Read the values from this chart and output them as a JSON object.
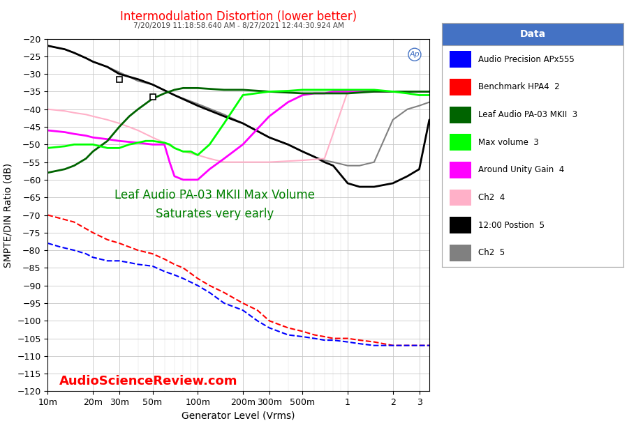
{
  "title_main": "Intermodulation Distortion (lower better)",
  "title_sub": "7/20/2019 11:18:58.640 AM - 8/27/2021 12:44:30.924 AM",
  "xlabel": "Generator Level (Vrms)",
  "ylabel": "SMPTE/DIN Ratio (dB)",
  "watermark": "AudioScienceReview.com",
  "annotation": "Leaf Audio PA-03 MKII Max Volume\nSaturates very early",
  "annotation_color": "#008000",
  "ylim": [
    -120,
    -20
  ],
  "yticks": [
    -120,
    -115,
    -110,
    -105,
    -100,
    -95,
    -90,
    -85,
    -80,
    -75,
    -70,
    -65,
    -60,
    -55,
    -50,
    -45,
    -40,
    -35,
    -30,
    -25,
    -20
  ],
  "xtick_vals": [
    0.01,
    0.02,
    0.03,
    0.05,
    0.1,
    0.2,
    0.3,
    0.5,
    1.0,
    2.0,
    3.0
  ],
  "xtick_labels": [
    "10m",
    "20m",
    "30m",
    "50m",
    "100m",
    "200m",
    "300m",
    "500m",
    "1",
    "2",
    "3"
  ],
  "legend_title": "Data",
  "legend_title_bg": "#4472c4",
  "legend_entries": [
    {
      "label": "Audio Precision APx555",
      "color": "#0000ff",
      "lw": 1.5,
      "ls": "--"
    },
    {
      "label": "Benchmark HPA4  2",
      "color": "#ff0000",
      "lw": 1.5,
      "ls": "--"
    },
    {
      "label": "Leaf Audio PA-03 MKII  3",
      "color": "#006400",
      "lw": 2.0,
      "ls": "-"
    },
    {
      "label": "Max volume  3",
      "color": "#00ff00",
      "lw": 2.0,
      "ls": "-"
    },
    {
      "label": "Around Unity Gain  4",
      "color": "#ff00ff",
      "lw": 2.0,
      "ls": "-"
    },
    {
      "label": "Ch2  4",
      "color": "#ffb0c8",
      "lw": 1.5,
      "ls": "-"
    },
    {
      "label": "12:00 Postion  5",
      "color": "#000000",
      "lw": 2.0,
      "ls": "-"
    },
    {
      "label": "Ch2  5",
      "color": "#808080",
      "lw": 1.5,
      "ls": "-"
    }
  ],
  "series": {
    "apx555": {
      "color": "#0000ff",
      "lw": 1.5,
      "ls": "--",
      "x": [
        0.01,
        0.012,
        0.015,
        0.018,
        0.02,
        0.025,
        0.03,
        0.035,
        0.04,
        0.05,
        0.06,
        0.07,
        0.08,
        0.1,
        0.12,
        0.15,
        0.2,
        0.25,
        0.3,
        0.4,
        0.5,
        0.6,
        0.7,
        0.8,
        1.0,
        1.2,
        1.5,
        2.0,
        2.5,
        3.0,
        3.5
      ],
      "y": [
        -78,
        -79,
        -80,
        -81,
        -82,
        -83,
        -83,
        -83.5,
        -84,
        -84.5,
        -86,
        -87,
        -88,
        -90,
        -92,
        -95,
        -97,
        -100,
        -102,
        -104,
        -104.5,
        -105,
        -105.5,
        -105.5,
        -106,
        -106.5,
        -107,
        -107,
        -107,
        -107,
        -107
      ]
    },
    "hpa4": {
      "color": "#ff0000",
      "lw": 1.5,
      "ls": "--",
      "x": [
        0.01,
        0.015,
        0.02,
        0.025,
        0.03,
        0.04,
        0.05,
        0.06,
        0.07,
        0.08,
        0.1,
        0.12,
        0.15,
        0.2,
        0.25,
        0.3,
        0.4,
        0.5,
        0.6,
        0.7,
        0.8,
        1.0,
        1.2,
        1.5,
        2.0,
        2.5,
        3.0,
        3.5
      ],
      "y": [
        -70,
        -72,
        -75,
        -77,
        -78,
        -80,
        -81,
        -82.5,
        -84,
        -85,
        -88,
        -90,
        -92,
        -95,
        -97,
        -100,
        -102,
        -103,
        -104,
        -104.5,
        -105,
        -105,
        -105.5,
        -106,
        -107,
        -107,
        -107,
        -107
      ]
    },
    "leafmkii": {
      "color": "#006400",
      "lw": 2.0,
      "ls": "-",
      "x": [
        0.01,
        0.013,
        0.015,
        0.018,
        0.02,
        0.025,
        0.03,
        0.035,
        0.04,
        0.05,
        0.06,
        0.07,
        0.08,
        0.1,
        0.15,
        0.2,
        0.3,
        0.5,
        0.7,
        1.0,
        1.5,
        2.0,
        3.0,
        3.5
      ],
      "y": [
        -58,
        -57,
        -56,
        -54,
        -52,
        -49,
        -45,
        -42,
        -40,
        -37,
        -35.5,
        -34.5,
        -34,
        -34,
        -34.5,
        -34.5,
        -35,
        -35.5,
        -35.5,
        -35.5,
        -35,
        -35,
        -35,
        -35
      ]
    },
    "maxvolume": {
      "color": "#00ff00",
      "lw": 2.0,
      "ls": "-",
      "x": [
        0.01,
        0.013,
        0.015,
        0.018,
        0.02,
        0.025,
        0.03,
        0.035,
        0.04,
        0.045,
        0.05,
        0.06,
        0.065,
        0.07,
        0.08,
        0.09,
        0.1,
        0.12,
        0.15,
        0.2,
        0.3,
        0.4,
        0.5,
        0.7,
        1.0,
        1.5,
        2.0,
        2.5,
        3.0,
        3.5
      ],
      "y": [
        -51,
        -50.5,
        -50,
        -50,
        -50,
        -51,
        -51,
        -50,
        -49.5,
        -49,
        -49,
        -49.5,
        -50,
        -51,
        -52,
        -52,
        -53,
        -50,
        -44,
        -36,
        -35,
        -34.8,
        -34.5,
        -34.5,
        -34.5,
        -34.5,
        -35,
        -35.5,
        -36,
        -36
      ]
    },
    "unity_gain": {
      "color": "#ff00ff",
      "lw": 2.0,
      "ls": "-",
      "x": [
        0.01,
        0.013,
        0.015,
        0.018,
        0.02,
        0.025,
        0.03,
        0.04,
        0.05,
        0.06,
        0.065,
        0.07,
        0.08,
        0.1,
        0.12,
        0.15,
        0.2,
        0.3,
        0.4,
        0.5,
        0.6,
        0.7,
        0.8,
        1.0,
        1.5,
        2.0,
        2.5,
        3.0,
        3.5
      ],
      "y": [
        -46,
        -46.5,
        -47,
        -47.5,
        -48,
        -48.5,
        -49,
        -49.5,
        -50,
        -50,
        -55,
        -59,
        -60,
        -60,
        -57,
        -54,
        -50,
        -42,
        -38,
        -36,
        -35.5,
        -35.5,
        -35,
        -35,
        -35,
        -35,
        -35,
        -35,
        -35
      ]
    },
    "ch2_4": {
      "color": "#ffb0c8",
      "lw": 1.5,
      "ls": "-",
      "x": [
        0.01,
        0.013,
        0.015,
        0.018,
        0.02,
        0.025,
        0.03,
        0.04,
        0.05,
        0.06,
        0.07,
        0.08,
        0.1,
        0.12,
        0.15,
        0.2,
        0.3,
        0.5,
        0.7,
        1.0,
        1.5,
        2.0,
        3.0,
        3.5
      ],
      "y": [
        -40,
        -40.5,
        -41,
        -41.5,
        -42,
        -43,
        -44,
        -46,
        -48,
        -49.5,
        -51,
        -52,
        -53,
        -54,
        -55,
        -55,
        -55,
        -54.5,
        -54,
        -35,
        -35,
        -35,
        -35,
        -35
      ]
    },
    "noon_pos": {
      "color": "#000000",
      "lw": 2.0,
      "ls": "-",
      "x": [
        0.01,
        0.013,
        0.015,
        0.018,
        0.02,
        0.025,
        0.03,
        0.04,
        0.05,
        0.07,
        0.1,
        0.15,
        0.2,
        0.3,
        0.4,
        0.5,
        0.6,
        0.7,
        0.8,
        1.0,
        1.2,
        1.5,
        2.0,
        2.5,
        3.0,
        3.5
      ],
      "y": [
        -22,
        -23,
        -24,
        -25.5,
        -26.5,
        -28,
        -30,
        -31.5,
        -33,
        -36,
        -39,
        -42,
        -44,
        -48,
        -50,
        -52,
        -53.5,
        -55,
        -56,
        -61,
        -62,
        -62,
        -61,
        -59,
        -57,
        -43
      ]
    },
    "ch2_5": {
      "color": "#808080",
      "lw": 1.5,
      "ls": "-",
      "x": [
        0.01,
        0.013,
        0.015,
        0.018,
        0.02,
        0.025,
        0.03,
        0.04,
        0.05,
        0.07,
        0.1,
        0.15,
        0.2,
        0.3,
        0.4,
        0.5,
        0.6,
        0.7,
        0.8,
        1.0,
        1.2,
        1.5,
        2.0,
        2.5,
        3.0,
        3.5
      ],
      "y": [
        -22,
        -23,
        -24,
        -25.5,
        -26.5,
        -28,
        -29.5,
        -32,
        -33,
        -36,
        -38.5,
        -41.5,
        -44,
        -48,
        -50,
        -52,
        -53.5,
        -54.5,
        -55,
        -56,
        -56,
        -55,
        -43,
        -40,
        -39,
        -38
      ]
    }
  }
}
